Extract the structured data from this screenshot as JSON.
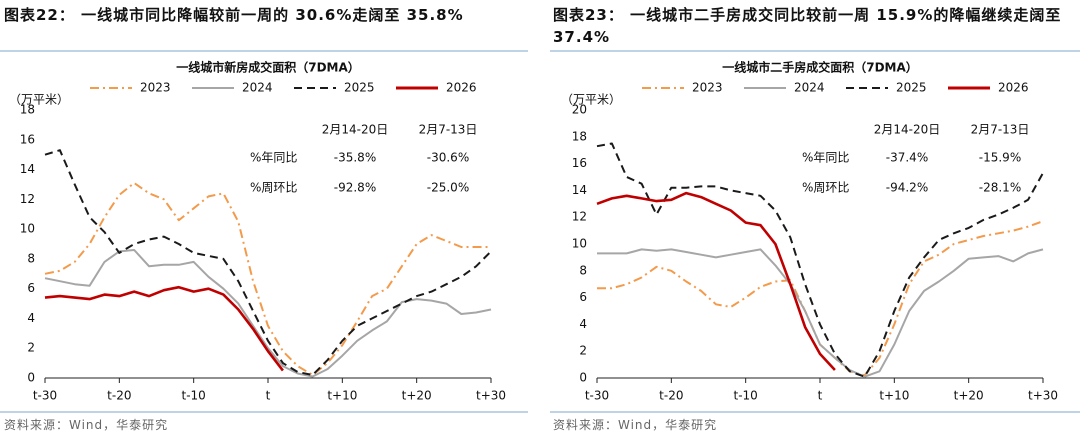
{
  "chart_data": [
    {
      "type": "line",
      "title": "图表22： 一线城市同比降幅较前一周的 30.6%走阔至 35.8%",
      "subtitle": "一线城市新房成交面积（7DMA）",
      "y_label": "（万平米）",
      "source": "资料来源：Wind，华泰研究",
      "legend": "top",
      "x": [
        -30,
        -28,
        -26,
        -24,
        -22,
        -20,
        -18,
        -16,
        -14,
        -12,
        -10,
        -8,
        -6,
        -4,
        -2,
        0,
        2,
        4,
        6,
        8,
        10,
        12,
        14,
        16,
        18,
        20,
        22,
        24,
        26,
        28,
        30
      ],
      "xlim": [
        -30,
        30
      ],
      "xticks": [
        {
          "value": -30,
          "label": "t-30"
        },
        {
          "value": -20,
          "label": "t-20"
        },
        {
          "value": -10,
          "label": "t-10"
        },
        {
          "value": 0,
          "label": "t"
        },
        {
          "value": 10,
          "label": "t+10"
        },
        {
          "value": 20,
          "label": "t+20"
        },
        {
          "value": 30,
          "label": "t+30"
        }
      ],
      "ylim": [
        0,
        18
      ],
      "yticks": [
        0,
        2,
        4,
        6,
        8,
        10,
        12,
        14,
        16,
        18
      ],
      "series": [
        {
          "name": "2023",
          "color": "#f39a4b",
          "style": "dash-dot",
          "values": [
            7.0,
            7.2,
            7.8,
            9.0,
            10.8,
            12.3,
            13.1,
            12.4,
            12.0,
            10.6,
            11.4,
            12.2,
            12.4,
            10.5,
            6.5,
            3.5,
            1.8,
            0.8,
            0.2,
            1.0,
            2.2,
            3.8,
            5.5,
            6.0,
            7.5,
            9.0,
            9.6,
            9.2,
            8.8,
            8.8,
            8.8
          ]
        },
        {
          "name": "2024",
          "color": "#a6a6a6",
          "style": "solid",
          "values": [
            6.7,
            6.5,
            6.3,
            6.2,
            7.8,
            8.5,
            8.6,
            7.5,
            7.6,
            7.6,
            7.8,
            6.8,
            6.0,
            5.0,
            3.5,
            2.0,
            0.8,
            0.3,
            0.1,
            0.6,
            1.5,
            2.5,
            3.2,
            3.8,
            5.1,
            5.3,
            5.2,
            5.0,
            4.3,
            4.4,
            4.6
          ]
        },
        {
          "name": "2025",
          "color": "#1a1a1a",
          "style": "dash",
          "values": [
            15.0,
            15.3,
            13.0,
            10.8,
            9.8,
            8.4,
            9.0,
            9.3,
            9.5,
            9.0,
            8.4,
            8.2,
            8.0,
            6.5,
            4.5,
            2.5,
            1.0,
            0.4,
            0.2,
            1.2,
            2.5,
            3.5,
            4.0,
            4.5,
            5.0,
            5.5,
            5.8,
            6.3,
            6.8,
            7.5,
            8.5
          ]
        },
        {
          "name": "2026",
          "color": "#c00000",
          "style": "solid",
          "values": [
            5.4,
            5.5,
            5.4,
            5.3,
            5.6,
            5.5,
            5.8,
            5.5,
            5.9,
            6.1,
            5.8,
            6.0,
            5.6,
            4.6,
            3.3,
            1.8,
            0.5,
            null,
            null,
            null,
            null,
            null,
            null,
            null,
            null,
            null,
            null,
            null,
            null,
            null,
            null
          ]
        }
      ],
      "annotation": {
        "columns": [
          "2月14-20日",
          "2月7-13日"
        ],
        "rows": [
          {
            "label": "%年同比",
            "values": [
              -35.8,
              -30.6
            ],
            "value_labels": [
              "-35.8%",
              "-30.6%"
            ]
          },
          {
            "label": "%周环比",
            "values": [
              -92.8,
              -25.0
            ],
            "value_labels": [
              "-92.8%",
              "-25.0%"
            ]
          }
        ]
      }
    },
    {
      "type": "line",
      "title": "图表23： 一线城市二手房成交同比较前一周 15.9%的降幅继续走阔至 37.4%",
      "subtitle": "一线城市二手房成交面积（7DMA）",
      "y_label": "（万平米）",
      "source": "资料来源：Wind，华泰研究",
      "legend": "top",
      "x": [
        -30,
        -28,
        -26,
        -24,
        -22,
        -20,
        -18,
        -16,
        -14,
        -12,
        -10,
        -8,
        -6,
        -4,
        -2,
        0,
        2,
        4,
        6,
        8,
        10,
        12,
        14,
        16,
        18,
        20,
        22,
        24,
        26,
        28,
        30
      ],
      "xlim": [
        -30,
        30
      ],
      "xticks": [
        {
          "value": -30,
          "label": "t-30"
        },
        {
          "value": -20,
          "label": "t-20"
        },
        {
          "value": -10,
          "label": "t-10"
        },
        {
          "value": 0,
          "label": "t"
        },
        {
          "value": 10,
          "label": "t+10"
        },
        {
          "value": 20,
          "label": "t+20"
        },
        {
          "value": 30,
          "label": "t+30"
        }
      ],
      "ylim": [
        0,
        20
      ],
      "yticks": [
        0,
        2,
        4,
        6,
        8,
        10,
        12,
        14,
        16,
        18,
        20
      ],
      "series": [
        {
          "name": "2023",
          "color": "#f39a4b",
          "style": "dash-dot",
          "values": [
            6.7,
            6.7,
            7.0,
            7.5,
            8.3,
            8.0,
            7.2,
            6.5,
            5.5,
            5.3,
            6.0,
            6.8,
            7.2,
            7.3,
            5.0,
            2.5,
            1.5,
            0.5,
            0.2,
            1.5,
            4.0,
            7.0,
            8.7,
            9.2,
            10.0,
            10.3,
            10.6,
            10.8,
            11.0,
            11.3,
            11.7
          ]
        },
        {
          "name": "2024",
          "color": "#a6a6a6",
          "style": "solid",
          "values": [
            9.3,
            9.3,
            9.3,
            9.6,
            9.5,
            9.6,
            9.4,
            9.2,
            9.0,
            9.2,
            9.4,
            9.6,
            8.4,
            7.0,
            5.0,
            2.5,
            1.5,
            0.6,
            0.1,
            0.5,
            2.5,
            5.0,
            6.5,
            7.2,
            8.0,
            8.9,
            9.0,
            9.1,
            8.7,
            9.3,
            9.6
          ]
        },
        {
          "name": "2025",
          "color": "#1a1a1a",
          "style": "dash",
          "values": [
            17.3,
            17.5,
            15.0,
            14.5,
            12.2,
            14.2,
            14.2,
            14.3,
            14.3,
            14.0,
            13.8,
            13.6,
            12.5,
            10.5,
            7.0,
            4.0,
            1.8,
            0.5,
            0.1,
            2.0,
            5.0,
            7.5,
            9.0,
            10.3,
            10.8,
            11.2,
            11.8,
            12.2,
            12.7,
            13.3,
            15.3
          ]
        },
        {
          "name": "2026",
          "color": "#c00000",
          "style": "solid",
          "values": [
            13.0,
            13.4,
            13.6,
            13.4,
            13.2,
            13.3,
            13.8,
            13.5,
            13.0,
            12.5,
            11.6,
            11.4,
            10.0,
            7.0,
            3.8,
            1.8,
            0.6,
            null,
            null,
            null,
            null,
            null,
            null,
            null,
            null,
            null,
            null,
            null,
            null,
            null,
            null
          ]
        }
      ],
      "annotation": {
        "columns": [
          "2月14-20日",
          "2月7-13日"
        ],
        "rows": [
          {
            "label": "%年同比",
            "values": [
              -37.4,
              -15.9
            ],
            "value_labels": [
              "-37.4%",
              "-15.9%"
            ]
          },
          {
            "label": "%周环比",
            "values": [
              -94.2,
              -28.1
            ],
            "value_labels": [
              "-94.2%",
              "-28.1%"
            ]
          }
        ]
      }
    }
  ]
}
